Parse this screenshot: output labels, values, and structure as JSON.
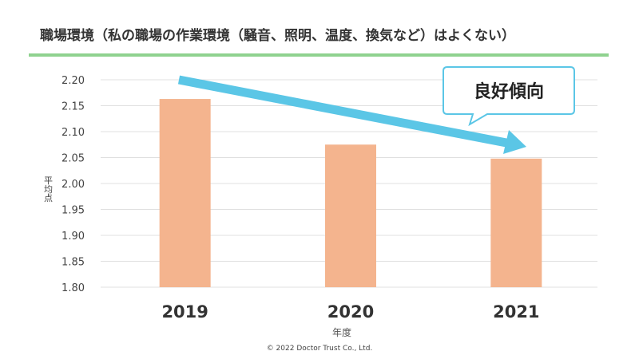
{
  "chart_data": {
    "type": "bar",
    "title": "職場環境（私の職場の作業環境（騒音、照明、温度、換気など）はよくない）",
    "xlabel": "年度",
    "ylabel": "平均点",
    "categories": [
      "2019",
      "2020",
      "2021"
    ],
    "values": [
      2.163,
      2.075,
      2.048
    ],
    "ylim": [
      1.8,
      2.2
    ],
    "yticks": [
      "1.80",
      "1.85",
      "1.90",
      "1.95",
      "2.00",
      "2.05",
      "2.10",
      "2.15",
      "2.20"
    ],
    "grid": true,
    "annotation": "良好傾向"
  },
  "colors": {
    "bar": "#f4b48e",
    "arrow": "#5bc6e6",
    "title_rule": "#8fd28f",
    "grid": "#e0e0e0",
    "callout_border": "#5bc6e6"
  },
  "footer": "© 2022 Doctor Trust Co., Ltd."
}
